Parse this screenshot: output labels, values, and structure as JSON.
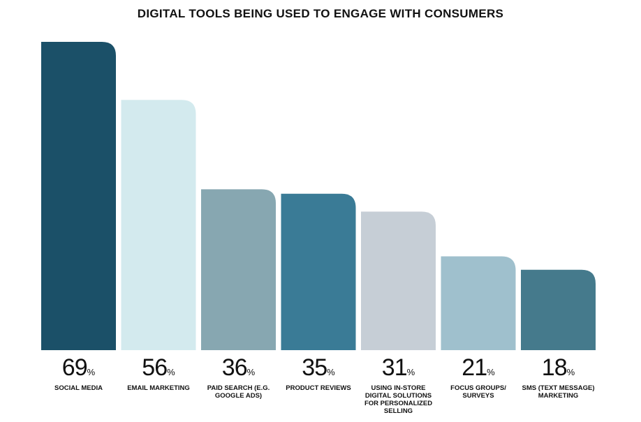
{
  "chart_data": {
    "type": "bar",
    "title": "DIGITAL TOOLS BEING USED TO ENGAGE WITH CONSUMERS",
    "categories": [
      "SOCIAL MEDIA",
      "EMAIL MARKETING",
      "PAID SEARCH (E.G. GOOGLE ADS)",
      "PRODUCT REVIEWS",
      "USING IN-STORE DIGITAL SOLUTIONS FOR PERSONALIZED SELLING",
      "FOCUS GROUPS/ SURVEYS",
      "SMS (TEXT MESSAGE) MARKETING"
    ],
    "values": [
      69,
      56,
      36,
      35,
      31,
      21,
      18
    ],
    "value_labels": [
      "69",
      "56",
      "36",
      "35",
      "31",
      "21",
      "18"
    ],
    "unit": "%",
    "colors": [
      "#1b5068",
      "#d3eaee",
      "#87a7b1",
      "#3a7b96",
      "#c6ced6",
      "#9fc0cd",
      "#457a8c"
    ],
    "xlabel": "",
    "ylabel": "",
    "ylim": [
      0,
      69
    ],
    "grid": false
  }
}
